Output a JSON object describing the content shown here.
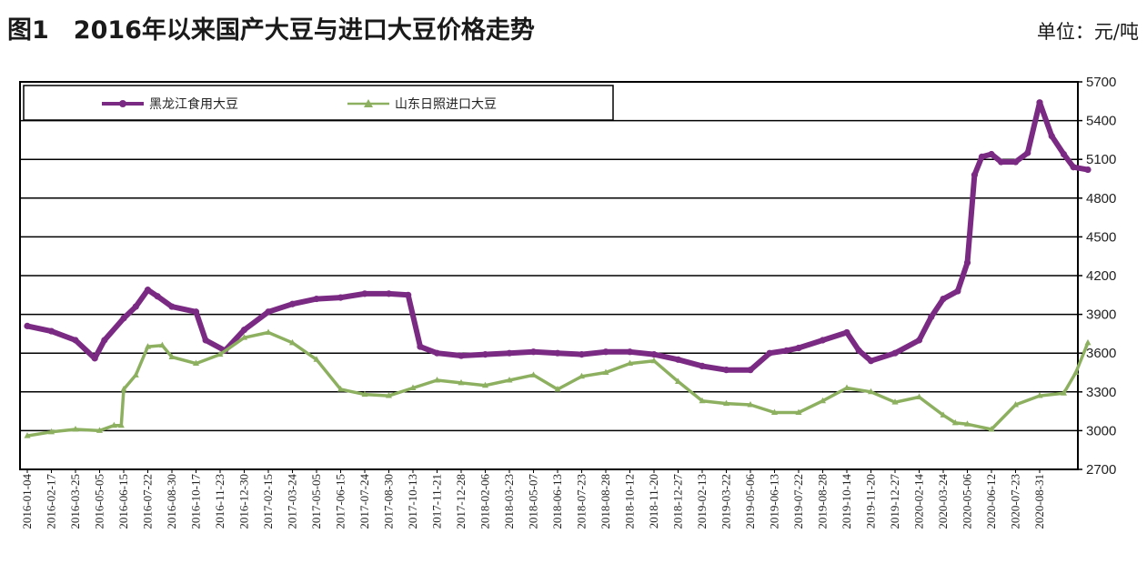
{
  "chart_data": {
    "type": "line",
    "title": "图1　2016年以来国产大豆与进口大豆价格走势",
    "unit": "单位：元/吨",
    "xlabel": "",
    "ylabel": "",
    "ylim": [
      2700,
      5700
    ],
    "yticks": [
      2700,
      3000,
      3300,
      3600,
      3900,
      4200,
      4500,
      4800,
      5100,
      5400,
      5700
    ],
    "y_axis_side": "right",
    "grid": "horizontal",
    "legend_position": "top",
    "categories": [
      "2016-01-04",
      "2016-02-17",
      "2016-03-25",
      "2016-05-05",
      "2016-06-15",
      "2016-07-22",
      "2016-08-30",
      "2016-10-17",
      "2016-11-23",
      "2016-12-30",
      "2017-02-15",
      "2017-03-24",
      "2017-05-05",
      "2017-06-15",
      "2017-07-24",
      "2017-08-30",
      "2017-10-13",
      "2017-11-21",
      "2017-12-28",
      "2018-02-06",
      "2018-03-23",
      "2018-05-07",
      "2018-06-13",
      "2018-07-23",
      "2018-08-28",
      "2018-10-12",
      "2018-11-20",
      "2018-12-27",
      "2019-02-13",
      "2019-03-22",
      "2019-05-06",
      "2019-06-13",
      "2019-07-22",
      "2019-08-28",
      "2019-10-14",
      "2019-11-20",
      "2019-12-27",
      "2020-02-14",
      "2020-03-24",
      "2020-05-06",
      "2020-06-12",
      "2020-07-23",
      "2020-08-31"
    ],
    "series": [
      {
        "name": "黑龙江食用大豆",
        "color": "#7b2a83",
        "marker": "circle",
        "points": [
          [
            0,
            3810
          ],
          [
            1,
            3770
          ],
          [
            2,
            3700
          ],
          [
            2.8,
            3560
          ],
          [
            3.2,
            3700
          ],
          [
            4,
            3870
          ],
          [
            4.5,
            3960
          ],
          [
            5,
            4090
          ],
          [
            5.4,
            4040
          ],
          [
            6,
            3960
          ],
          [
            7,
            3920
          ],
          [
            7.4,
            3700
          ],
          [
            8.2,
            3620
          ],
          [
            9,
            3780
          ],
          [
            10,
            3920
          ],
          [
            11,
            3980
          ],
          [
            12,
            4020
          ],
          [
            13,
            4030
          ],
          [
            14,
            4060
          ],
          [
            15,
            4060
          ],
          [
            15.8,
            4050
          ],
          [
            16.3,
            3650
          ],
          [
            17,
            3600
          ],
          [
            18,
            3580
          ],
          [
            19,
            3590
          ],
          [
            20,
            3600
          ],
          [
            21,
            3610
          ],
          [
            22,
            3600
          ],
          [
            23,
            3590
          ],
          [
            24,
            3610
          ],
          [
            25,
            3610
          ],
          [
            26,
            3590
          ],
          [
            27,
            3550
          ],
          [
            28,
            3500
          ],
          [
            29,
            3470
          ],
          [
            30,
            3470
          ],
          [
            30.8,
            3600
          ],
          [
            31.5,
            3620
          ],
          [
            32,
            3640
          ],
          [
            33,
            3700
          ],
          [
            34,
            3760
          ],
          [
            34.5,
            3620
          ],
          [
            35,
            3540
          ],
          [
            36,
            3600
          ],
          [
            37,
            3700
          ],
          [
            37.5,
            3880
          ],
          [
            38,
            4020
          ],
          [
            38.6,
            4080
          ],
          [
            39,
            4300
          ],
          [
            39.3,
            4980
          ],
          [
            39.6,
            5120
          ],
          [
            40,
            5140
          ],
          [
            40.4,
            5080
          ],
          [
            41,
            5080
          ],
          [
            41.5,
            5150
          ],
          [
            42,
            5540
          ],
          [
            42.5,
            5280
          ],
          [
            43,
            5140
          ],
          [
            43.4,
            5040
          ],
          [
            44,
            5020
          ]
        ]
      },
      {
        "name": "山东日照进口大豆",
        "color": "#8db060",
        "marker": "triangle",
        "points": [
          [
            0,
            2960
          ],
          [
            1,
            2990
          ],
          [
            2,
            3010
          ],
          [
            3,
            3000
          ],
          [
            3.6,
            3040
          ],
          [
            3.9,
            3040
          ],
          [
            4,
            3320
          ],
          [
            4.5,
            3430
          ],
          [
            5,
            3650
          ],
          [
            5.6,
            3660
          ],
          [
            6,
            3570
          ],
          [
            7,
            3520
          ],
          [
            8,
            3590
          ],
          [
            9,
            3720
          ],
          [
            10,
            3760
          ],
          [
            11,
            3680
          ],
          [
            12,
            3550
          ],
          [
            13,
            3320
          ],
          [
            14,
            3280
          ],
          [
            15,
            3270
          ],
          [
            16,
            3330
          ],
          [
            17,
            3390
          ],
          [
            18,
            3370
          ],
          [
            19,
            3350
          ],
          [
            20,
            3390
          ],
          [
            21,
            3430
          ],
          [
            22,
            3320
          ],
          [
            23,
            3420
          ],
          [
            24,
            3450
          ],
          [
            25,
            3520
          ],
          [
            26,
            3540
          ],
          [
            27,
            3380
          ],
          [
            28,
            3230
          ],
          [
            29,
            3210
          ],
          [
            30,
            3200
          ],
          [
            31,
            3140
          ],
          [
            32,
            3140
          ],
          [
            33,
            3230
          ],
          [
            34,
            3330
          ],
          [
            35,
            3300
          ],
          [
            36,
            3220
          ],
          [
            37,
            3260
          ],
          [
            38,
            3120
          ],
          [
            38.5,
            3060
          ],
          [
            39,
            3050
          ],
          [
            40,
            3010
          ],
          [
            41,
            3200
          ],
          [
            42,
            3270
          ],
          [
            43,
            3290
          ],
          [
            43.5,
            3450
          ],
          [
            44,
            3680
          ]
        ]
      }
    ]
  }
}
